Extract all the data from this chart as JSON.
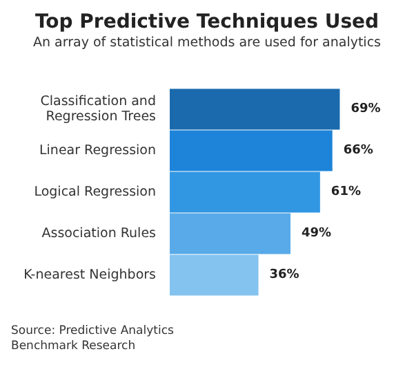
{
  "chart_data": {
    "type": "bar",
    "orientation": "horizontal",
    "title": "Top Predictive Techniques Used",
    "subtitle": "An array of statistical methods are used for analytics",
    "categories": [
      "Classification and\nRegression Trees",
      "Linear Regression",
      "Logical Regression",
      "Association Rules",
      "K-nearest Neighbors"
    ],
    "values": [
      69,
      66,
      61,
      49,
      36
    ],
    "colors": [
      "#1a6aad",
      "#1e84d9",
      "#3297e3",
      "#58aae8",
      "#84c3ef"
    ],
    "value_labels": [
      "69%",
      "66%",
      "61%",
      "49%",
      "36%"
    ],
    "annotations": [
      "Source: Predictive Analytics Benchmark Research"
    ]
  }
}
